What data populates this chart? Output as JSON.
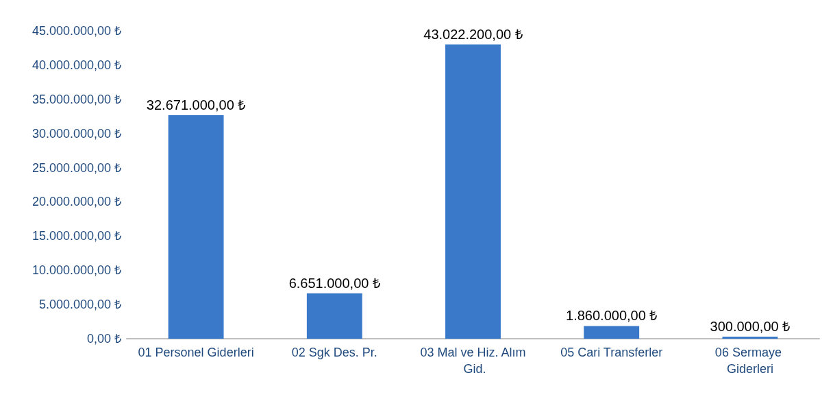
{
  "chart_data": {
    "type": "bar",
    "categories": [
      "01 Personel Giderleri",
      "02 Sgk Des. Pr.",
      "03 Mal ve Hiz. Alım Gid.",
      "05 Cari Transferler",
      "06 Sermaye Giderleri"
    ],
    "values": [
      32671000,
      6651000,
      43022200,
      1860000,
      300000
    ],
    "value_labels": [
      "32.671.000,00 ₺",
      "6.651.000,00 ₺",
      "43.022.200,00 ₺",
      "1.860.000,00 ₺",
      "300.000,00 ₺"
    ],
    "color": "#3a78c9",
    "ylim": [
      0,
      45000000
    ],
    "yticks": [
      {
        "value": 0,
        "label": "0,00 ₺"
      },
      {
        "value": 5000000,
        "label": "5.000.000,00 ₺"
      },
      {
        "value": 10000000,
        "label": "10.000.000,00 ₺"
      },
      {
        "value": 15000000,
        "label": "15.000.000,00 ₺"
      },
      {
        "value": 20000000,
        "label": "20.000.000,00 ₺"
      },
      {
        "value": 25000000,
        "label": "25.000.000,00 ₺"
      },
      {
        "value": 30000000,
        "label": "30.000.000,00 ₺"
      },
      {
        "value": 35000000,
        "label": "35.000.000,00 ₺"
      },
      {
        "value": 40000000,
        "label": "40.000.000,00 ₺"
      },
      {
        "value": 45000000,
        "label": "45.000.000,00 ₺"
      }
    ],
    "grid": false
  }
}
